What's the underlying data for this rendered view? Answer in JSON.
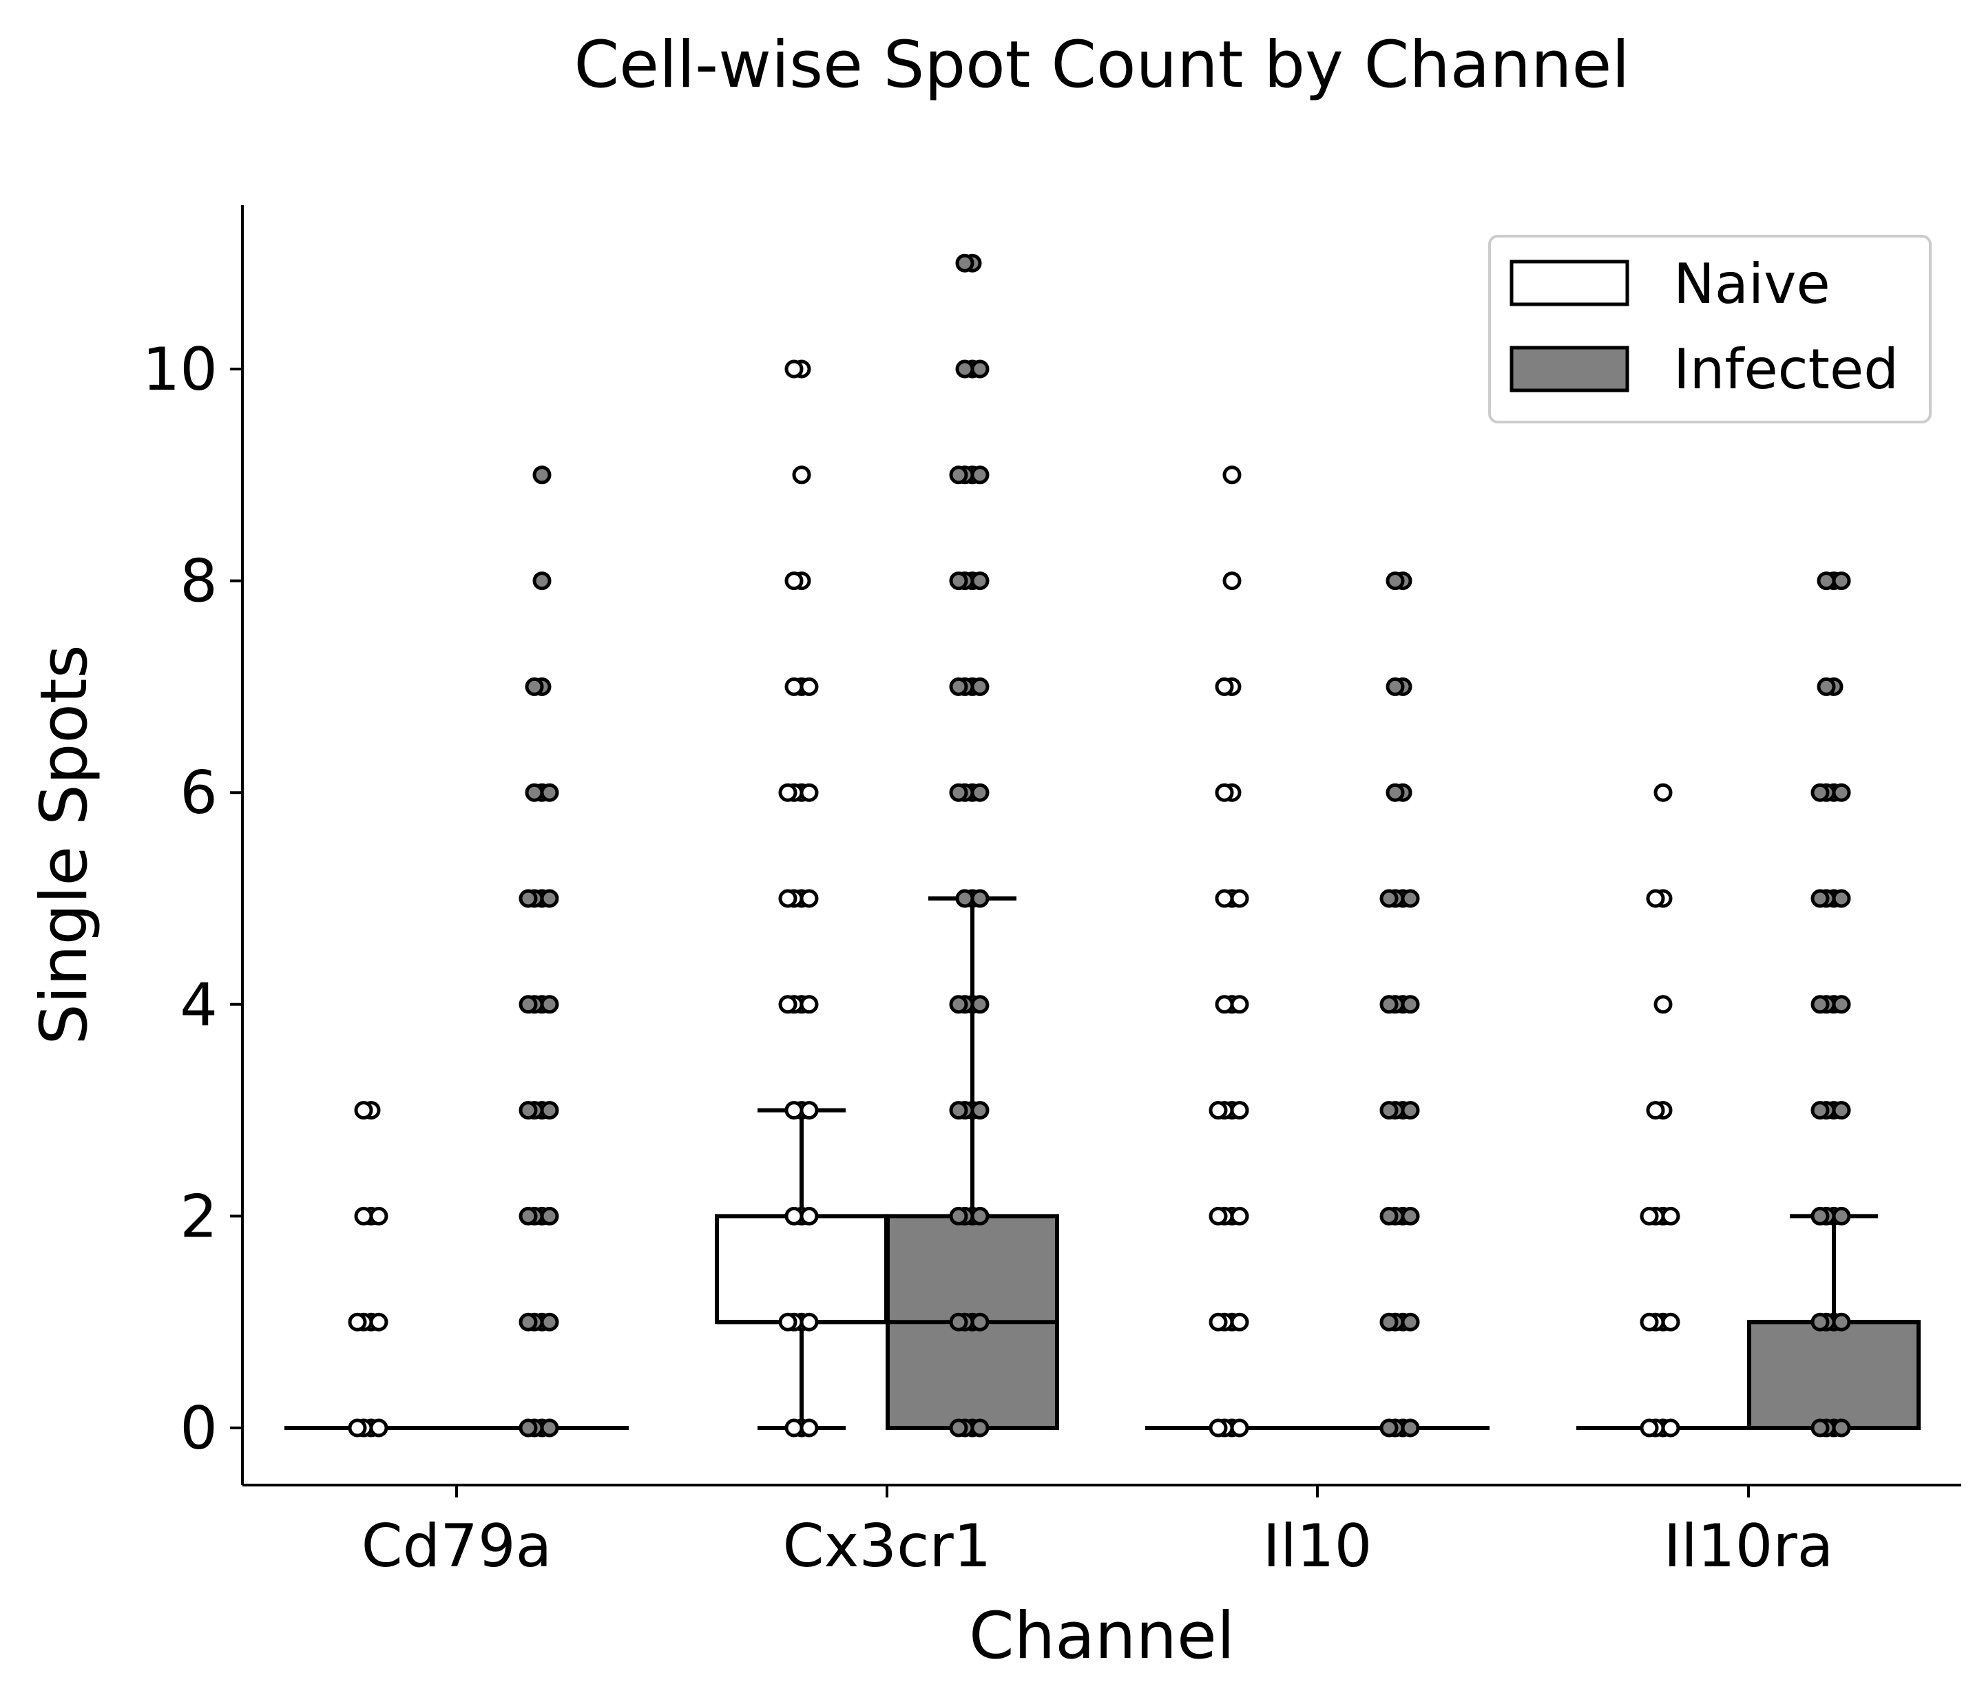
{
  "chart_data": {
    "type": "box",
    "title": "Cell-wise Spot Count by Channel",
    "xlabel": "Channel",
    "ylabel": "Single Spots",
    "categories": [
      "Cd79a",
      "Cx3cr1",
      "Il10",
      "Il10ra"
    ],
    "ylim": [
      -0.55,
      11.55
    ],
    "yticks": [
      0,
      2,
      4,
      6,
      8,
      10
    ],
    "legend": {
      "placement": "top-right",
      "entries": [
        "Naive",
        "Infected"
      ]
    },
    "grid": false,
    "series": [
      {
        "name": "Naive",
        "color": "#ffffff",
        "boxes": [
          {
            "whislo": 0,
            "q1": 0,
            "med": 0,
            "q3": 0,
            "whishi": 0
          },
          {
            "whislo": 0,
            "q1": 1,
            "med": 1,
            "q3": 2,
            "whishi": 3
          },
          {
            "whislo": 0,
            "q1": 0,
            "med": 0,
            "q3": 0,
            "whishi": 0
          },
          {
            "whislo": 0,
            "q1": 0,
            "med": 0,
            "q3": 0,
            "whishi": 0
          }
        ],
        "points": [
          [
            0,
            0,
            0,
            0,
            1,
            1,
            1,
            1,
            2,
            2,
            2,
            3,
            3
          ],
          [
            0,
            0,
            0,
            1,
            1,
            1,
            1,
            2,
            2,
            2,
            3,
            3,
            3,
            4,
            4,
            4,
            4,
            5,
            5,
            5,
            5,
            6,
            6,
            6,
            6,
            7,
            7,
            7,
            8,
            8,
            9,
            10,
            10
          ],
          [
            0,
            0,
            0,
            0,
            1,
            1,
            1,
            1,
            2,
            2,
            2,
            2,
            3,
            3,
            3,
            3,
            4,
            4,
            4,
            5,
            5,
            5,
            6,
            6,
            7,
            7,
            8,
            9
          ],
          [
            0,
            0,
            0,
            0,
            1,
            1,
            1,
            1,
            2,
            2,
            2,
            2,
            3,
            3,
            4,
            5,
            5,
            6
          ]
        ]
      },
      {
        "name": "Infected",
        "color": "#808080",
        "boxes": [
          {
            "whislo": 0,
            "q1": 0,
            "med": 0,
            "q3": 0,
            "whishi": 0
          },
          {
            "whislo": 0,
            "q1": 0,
            "med": 1,
            "q3": 2,
            "whishi": 5
          },
          {
            "whislo": 0,
            "q1": 0,
            "med": 0,
            "q3": 0,
            "whishi": 0
          },
          {
            "whislo": 0,
            "q1": 0,
            "med": 1,
            "q3": 1,
            "whishi": 2
          }
        ],
        "points": [
          [
            0,
            0,
            0,
            0,
            1,
            1,
            1,
            1,
            2,
            2,
            2,
            2,
            3,
            3,
            3,
            3,
            4,
            4,
            4,
            4,
            5,
            5,
            5,
            5,
            6,
            6,
            6,
            7,
            7,
            8,
            9
          ],
          [
            0,
            0,
            0,
            0,
            1,
            1,
            1,
            1,
            2,
            2,
            2,
            2,
            3,
            3,
            3,
            3,
            4,
            4,
            4,
            4,
            5,
            5,
            5,
            6,
            6,
            6,
            6,
            7,
            7,
            7,
            7,
            8,
            8,
            8,
            8,
            9,
            9,
            9,
            9,
            10,
            10,
            10,
            11,
            11
          ],
          [
            0,
            0,
            0,
            0,
            1,
            1,
            1,
            1,
            2,
            2,
            2,
            2,
            3,
            3,
            3,
            3,
            4,
            4,
            4,
            4,
            5,
            5,
            5,
            5,
            6,
            6,
            7,
            7,
            8,
            8
          ],
          [
            0,
            0,
            0,
            0,
            1,
            1,
            1,
            1,
            2,
            2,
            2,
            2,
            3,
            3,
            3,
            3,
            4,
            4,
            4,
            4,
            5,
            5,
            5,
            5,
            6,
            6,
            6,
            6,
            7,
            7,
            8,
            8,
            8
          ]
        ]
      }
    ]
  }
}
